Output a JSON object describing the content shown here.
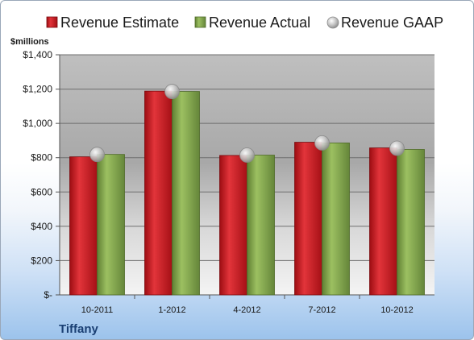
{
  "chart_data": {
    "type": "bar",
    "unit_label": "$millions",
    "company": "Tiffany",
    "categories": [
      "10-2011",
      "1-2012",
      "4-2012",
      "7-2012",
      "10-2012"
    ],
    "series": [
      {
        "name": "Revenue Estimate",
        "kind": "bar",
        "color": "#c0151c",
        "values": [
          805,
          1188,
          813,
          890,
          857
        ]
      },
      {
        "name": "Revenue Actual",
        "kind": "bar",
        "color": "#7ea04a",
        "values": [
          819,
          1186,
          815,
          886,
          848
        ]
      },
      {
        "name": "Revenue GAAP",
        "kind": "marker",
        "color": "#b9b9b9",
        "values": [
          819,
          1186,
          815,
          886,
          855
        ]
      }
    ],
    "ylim": [
      0,
      1400
    ],
    "yticks": [
      0,
      200,
      400,
      600,
      800,
      1000,
      1200,
      1400
    ],
    "ytick_labels": [
      "$-",
      "$200",
      "$400",
      "$600",
      "$800",
      "$1,000",
      "$1,200",
      "$1,400"
    ],
    "grid": true,
    "legend_position": "top"
  }
}
